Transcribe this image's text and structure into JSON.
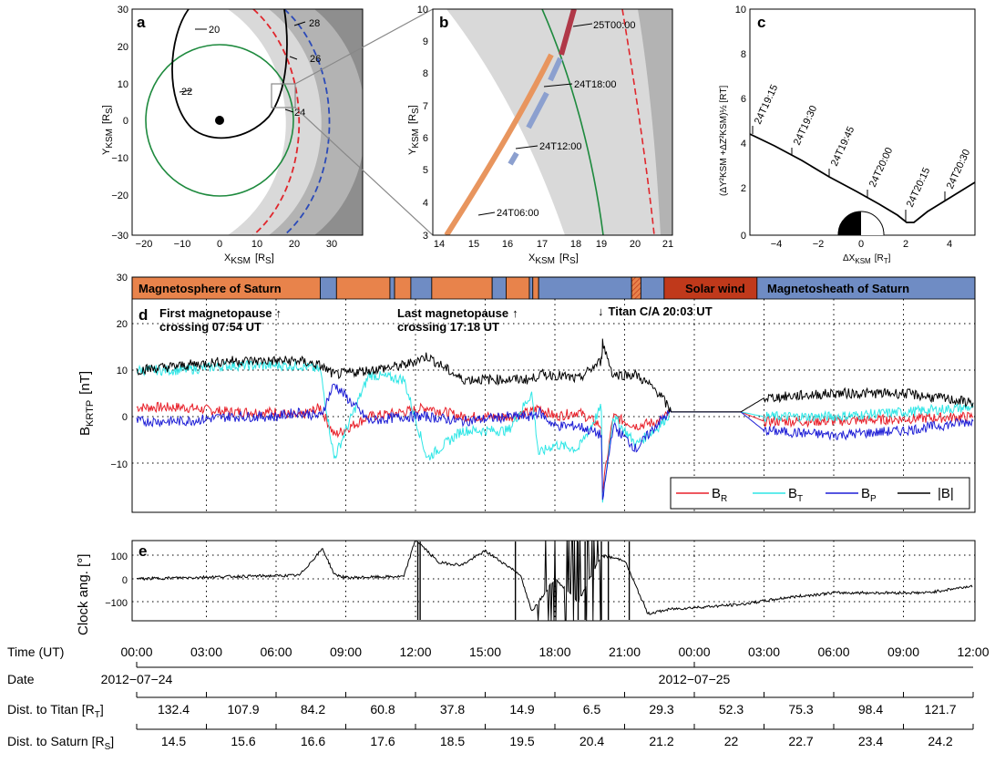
{
  "panel_a": {
    "letter": "a",
    "xlabel": "X",
    "xlabel_sub": "KSM",
    "xlabel_unit": "[R",
    "xlabel_unit_sub": "S",
    "xlabel_close": "]",
    "ylabel": "Y",
    "ylabel_sub": "KSM",
    "ylabel_unit": "[R",
    "ylabel_unit_sub": "S",
    "ylabel_close": "]",
    "xticks": [
      "−20",
      "−10",
      "0",
      "10",
      "20",
      "30"
    ],
    "yticks": [
      "30",
      "20",
      "10",
      "0",
      "−10",
      "−20",
      "−30"
    ],
    "labels": {
      "l20": "20",
      "l22": "22",
      "l24": "24",
      "l26": "26",
      "l28": "28"
    }
  },
  "panel_b": {
    "letter": "b",
    "xlabel": "X",
    "xlabel_sub": "KSM",
    "xlabel_unit": "[R",
    "xlabel_unit_sub": "S",
    "xlabel_close": "]",
    "ylabel": "Y",
    "ylabel_sub": "KSM",
    "ylabel_unit": "[R",
    "ylabel_unit_sub": "S",
    "ylabel_close": "]",
    "xticks": [
      "14",
      "15",
      "16",
      "17",
      "18",
      "19",
      "20",
      "21"
    ],
    "yticks": [
      "10",
      "9",
      "8",
      "7",
      "6",
      "5",
      "4",
      "3"
    ],
    "labels": {
      "t1": "25T00:00",
      "t2": "24T18:00",
      "t3": "24T12:00",
      "t4": "24T06:00"
    }
  },
  "panel_c": {
    "letter": "c",
    "xlabel": "ΔX",
    "xlabel_sub": "KSM",
    "xlabel_unit": "[R",
    "xlabel_unit_sub": "T",
    "xlabel_close": "]",
    "ylabel": "(ΔY²KSM +ΔZ²KSM)½  [RT]",
    "xticks": [
      "−4",
      "−2",
      "0",
      "2",
      "4"
    ],
    "yticks": [
      "10",
      "8",
      "6",
      "4",
      "2",
      "0"
    ],
    "labels": [
      "24T19:15",
      "24T19:30",
      "24T19:45",
      "24T20:00",
      "24T20:15",
      "24T20:30"
    ]
  },
  "panel_d": {
    "letter": "d",
    "ylabel": "B",
    "ylabel_sub": "KRTP",
    "ylabel_unit": "[nT]",
    "yticks": [
      "30",
      "20",
      "10",
      "0",
      "−10"
    ],
    "regions": {
      "magnetosphere": "Magnetosphere of Saturn",
      "solar_wind": "Solar wind",
      "magnetosheath": "Magnetosheath of Saturn"
    },
    "annotations": {
      "first1": "First magnetopause",
      "first2": "crossing 07:54 UT",
      "last1": "Last magnetopause",
      "last2": "crossing 17:18 UT",
      "titan": "Titan C/A 20:03 UT",
      "arrow_up": "↑",
      "arrow_down": "↓"
    },
    "legend": [
      {
        "name": "B",
        "sub": "R",
        "color": "#e8202a"
      },
      {
        "name": "B",
        "sub": "T",
        "color": "#2ee6e6"
      },
      {
        "name": "B",
        "sub": "P",
        "color": "#1f1fd6"
      },
      {
        "name": "|B|",
        "sub": "",
        "color": "#000000"
      }
    ]
  },
  "panel_e": {
    "letter": "e",
    "ylabel": "Clock ang. [°]",
    "yticks": [
      "100",
      "0",
      "−100"
    ]
  },
  "bottom": {
    "time_label": "Time (UT)",
    "times": [
      "00:00",
      "03:00",
      "06:00",
      "09:00",
      "12:00",
      "15:00",
      "18:00",
      "21:00",
      "00:00",
      "03:00",
      "06:00",
      "09:00",
      "12:00"
    ],
    "date_label": "Date",
    "dates": [
      "2012−07−24",
      "2012−07−25"
    ],
    "titan_label": "Dist. to Titan [R",
    "titan_label_sub": "T",
    "titan_close": "]",
    "titan_values": [
      "132.4",
      "107.9",
      "84.2",
      "60.8",
      "37.8",
      "14.9",
      "6.5",
      "29.3",
      "52.3",
      "75.3",
      "98.4",
      "121.7"
    ],
    "saturn_label": "Dist. to Saturn [R",
    "saturn_label_sub": "S",
    "saturn_close": "]",
    "saturn_values": [
      "14.5",
      "15.6",
      "16.6",
      "17.6",
      "18.5",
      "19.5",
      "20.4",
      "21.2",
      "22",
      "22.7",
      "23.4",
      "24.2"
    ]
  },
  "colors": {
    "magnetosphere": "#e8834b",
    "magnetosheath": "#6f8cc4",
    "solar_wind": "#c0391b",
    "trajectory_orange": "#e8955e",
    "trajectory_blue": "#8ca0cf",
    "trajectory_red": "#b03848",
    "titan_orbit": "#1e8a3e",
    "magnetopause": "#e0262c",
    "bowshock": "#2b4ab8"
  },
  "chart_data": [
    {
      "type": "line",
      "title": "",
      "xlabel": "X_KSM [R_S]",
      "ylabel": "Y_KSM [R_S]",
      "xlim": [
        -25,
        37
      ],
      "ylim": [
        -30,
        30
      ],
      "series": [
        {
          "name": "",
          "x": [
            -8,
            -6,
            0,
            8,
            13,
            15,
            14,
            10,
            4,
            -2,
            -8,
            -8
          ],
          "y": [
            -2,
            -5,
            -5,
            0,
            12,
            22,
            30,
            30,
            29,
            25,
            15,
            -2
          ]
        },
        {
          "name": "",
          "x": [
            -20,
            -17,
            -10,
            0,
            10,
            17,
            20,
            17,
            10,
            0,
            -10,
            -17,
            -20
          ],
          "y": [
            0,
            10,
            17,
            20,
            17,
            10,
            0,
            -10,
            -17,
            -20,
            -17,
            -10,
            0
          ]
        }
      ],
      "points": [
        {
          "x": 0,
          "y": 0
        }
      ]
    },
    {
      "type": "line",
      "title": "",
      "xlabel": "X_KSM [R_S]",
      "ylabel": "Y_KSM [R_S]",
      "xlim": [
        14,
        21
      ],
      "ylim": [
        3,
        10
      ],
      "series": [
        {
          "name": "",
          "x": [
            14.4,
            15.2,
            16,
            16.8,
            17.4,
            17.9,
            18.3
          ],
          "y": [
            3.0,
            4.3,
            5.6,
            7.0,
            8.2,
            9.2,
            10.0
          ]
        }
      ]
    },
    {
      "type": "line",
      "title": "",
      "xlabel": "ΔX_KSM [R_T]",
      "ylabel": "(ΔY²+ΔZ²)^½ [R_T]",
      "xlim": [
        -5,
        5
      ],
      "ylim": [
        0,
        10
      ],
      "series": [
        {
          "name": "",
          "x": [
            -5,
            -4,
            -3,
            -2,
            -1,
            0,
            1,
            1.5,
            2,
            2.3,
            3,
            4,
            5
          ],
          "y": [
            4.4,
            3.9,
            3.4,
            2.8,
            2.3,
            1.8,
            1.2,
            0.8,
            0.5,
            0.6,
            1.2,
            1.8,
            2.4
          ]
        }
      ]
    },
    {
      "type": "line",
      "title": "",
      "xlabel": "",
      "ylabel": "B_KRTP [nT]",
      "xlim": [
        0,
        36
      ],
      "ylim": [
        -20,
        30
      ],
      "x": [
        0,
        2,
        4,
        6,
        7,
        7.9,
        8.5,
        10,
        11.5,
        12.5,
        14,
        16,
        17,
        17.3,
        18,
        19,
        20,
        20.05,
        20.5,
        21.5,
        22.5,
        23,
        26,
        27,
        30,
        33,
        36
      ],
      "series": [
        {
          "name": "B_R",
          "values": [
            2,
            2,
            1,
            1,
            0,
            2,
            -4,
            0,
            1,
            2,
            0,
            0,
            1,
            2,
            0,
            1,
            -2,
            -16,
            0,
            -2,
            -1,
            1,
            1,
            -1,
            -1,
            -0.5,
            0
          ]
        },
        {
          "name": "B_T",
          "values": [
            10,
            10,
            11,
            11,
            11,
            10,
            -9,
            9,
            8,
            -9,
            -3,
            -3,
            5,
            -8,
            -6,
            -7,
            2,
            -18,
            0,
            -6,
            -2,
            1,
            1,
            0,
            0,
            1,
            2
          ]
        },
        {
          "name": "B_P",
          "values": [
            -1,
            -1,
            0,
            0,
            1,
            0,
            7,
            -1,
            0,
            0,
            -1,
            0,
            0,
            1,
            -2,
            -2,
            -4,
            -18,
            -2,
            -7,
            -1,
            1,
            1,
            -3,
            -4,
            -3,
            -1
          ]
        },
        {
          "name": "|B|",
          "values": [
            10,
            11,
            12,
            12,
            12,
            11,
            9,
            10,
            11,
            13,
            8,
            8,
            8,
            9,
            9,
            8,
            12,
            16,
            9,
            9,
            5,
            1,
            1,
            4,
            5,
            5,
            3
          ]
        }
      ]
    },
    {
      "type": "line",
      "title": "",
      "xlabel": "",
      "ylabel": "Clock ang. [°]",
      "xlim": [
        0,
        36
      ],
      "ylim": [
        -185,
        185
      ],
      "x": [
        0,
        4,
        7,
        8,
        8.5,
        9,
        11.5,
        12,
        13,
        14,
        15,
        16.5,
        17,
        18,
        19,
        20,
        21,
        22,
        23,
        26,
        28,
        30,
        34,
        36
      ],
      "values": [
        0,
        10,
        15,
        130,
        20,
        5,
        10,
        170,
        70,
        60,
        120,
        20,
        -140,
        0,
        -100,
        100,
        80,
        -150,
        -130,
        -110,
        -80,
        -60,
        -60,
        -30
      ]
    }
  ]
}
